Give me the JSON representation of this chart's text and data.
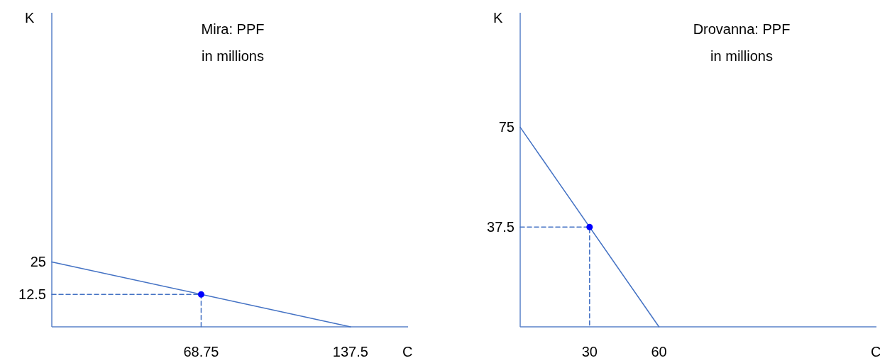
{
  "chart_data": [
    {
      "type": "line",
      "title": "Mira:  PPF",
      "subtitle": "in millions",
      "xlabel": "C",
      "ylabel": "K",
      "xlim": [
        0,
        164
      ],
      "ylim": [
        0,
        121
      ],
      "xticks": [
        68.75,
        137.5
      ],
      "yticks": [
        12.5,
        25
      ],
      "grid": false,
      "series": [
        {
          "color": "#4472c4",
          "line_style": "solid",
          "x": [
            0,
            137.5
          ],
          "values": [
            25,
            0
          ]
        },
        {
          "color": "#4472c4",
          "line_style": "dashed",
          "x": [
            0,
            68.75,
            68.75
          ],
          "values": [
            12.5,
            12.5,
            0
          ]
        },
        {
          "type": "scatter",
          "color": "#0000ff",
          "marker": "circle",
          "x": [
            68.75
          ],
          "values": [
            12.5
          ]
        }
      ]
    },
    {
      "type": "line",
      "title": "Drovanna:  PPF",
      "subtitle": "in millions",
      "xlabel": "C",
      "ylabel": "K",
      "xlim": [
        0,
        154
      ],
      "ylim": [
        0,
        118
      ],
      "xticks": [
        30,
        60
      ],
      "yticks": [
        37.5,
        75
      ],
      "grid": false,
      "series": [
        {
          "color": "#4472c4",
          "line_style": "solid",
          "x": [
            0,
            60
          ],
          "values": [
            75,
            0
          ]
        },
        {
          "color": "#4472c4",
          "line_style": "dashed",
          "x": [
            0,
            30,
            30
          ],
          "values": [
            37.5,
            37.5,
            0
          ]
        },
        {
          "type": "scatter",
          "color": "#0000ff",
          "marker": "circle",
          "x": [
            30
          ],
          "values": [
            37.5
          ]
        }
      ]
    }
  ]
}
